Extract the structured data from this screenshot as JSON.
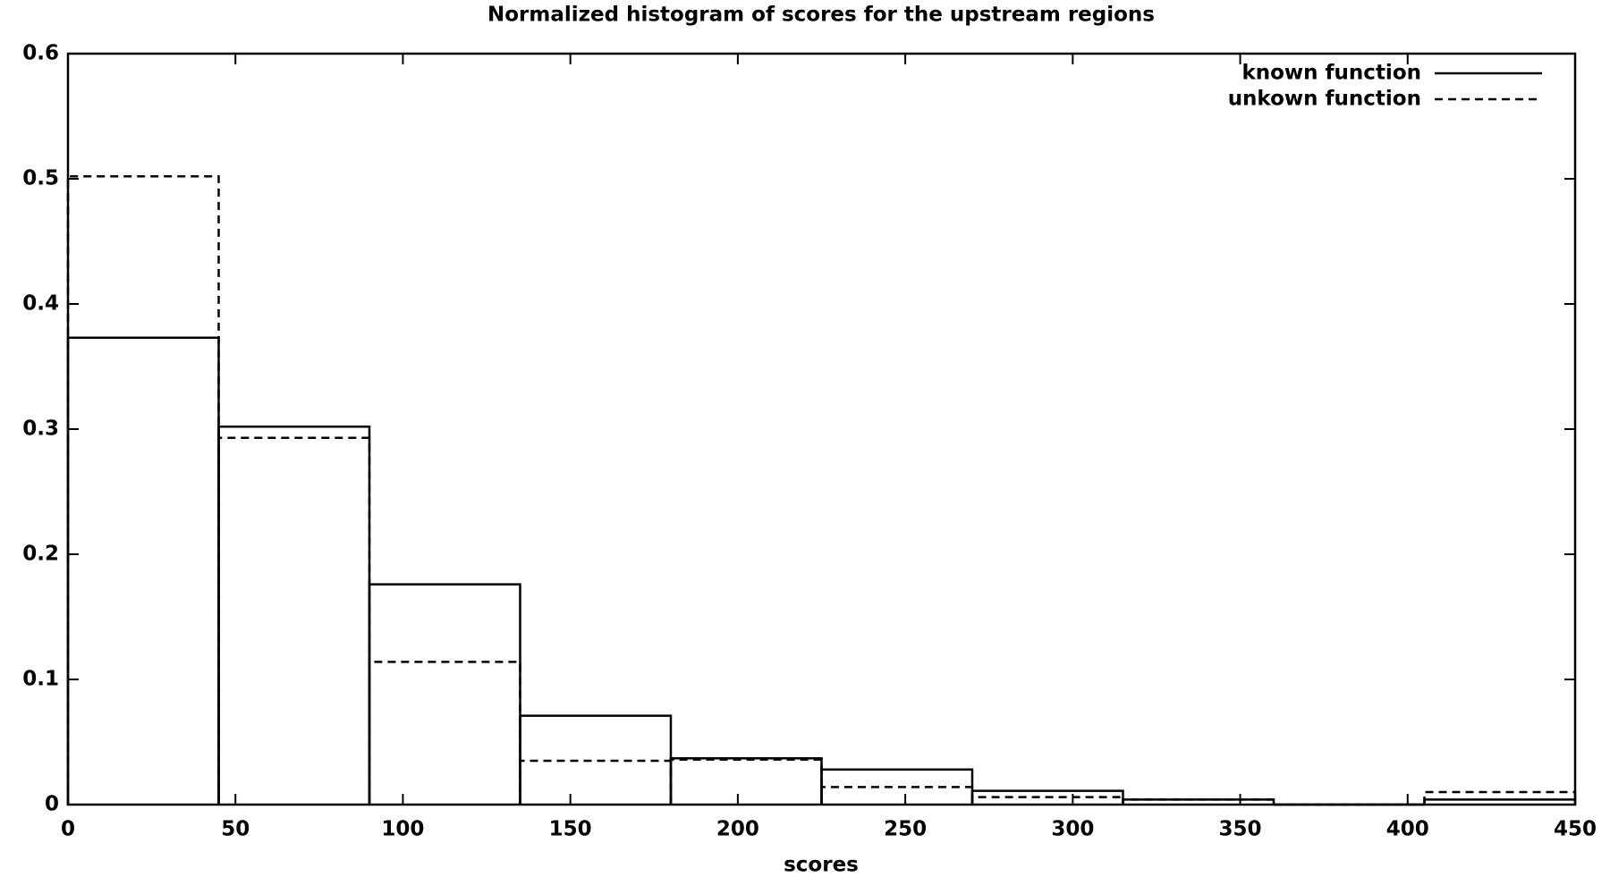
{
  "chart_data": {
    "type": "histogram",
    "title": "Normalized histogram of scores for the upstream regions",
    "x_label": "scores",
    "bins": [
      0,
      45,
      90,
      135,
      180,
      225,
      270,
      315,
      360,
      405,
      450
    ],
    "series": [
      {
        "name": "known function",
        "color": "#000000",
        "dash": "solid",
        "values": [
          0.373,
          0.302,
          0.176,
          0.071,
          0.037,
          0.028,
          0.011,
          0.004,
          0,
          0.004
        ]
      },
      {
        "name": "unkown function",
        "color": "#000000",
        "dash": "dashed",
        "values": [
          0.502,
          0.293,
          0.114,
          0.035,
          0.036,
          0.014,
          0.006,
          0.004,
          0,
          0.01
        ]
      }
    ],
    "xlim": [
      0,
      450
    ],
    "ylim": [
      0,
      0.6
    ],
    "xticks": [
      0,
      50,
      100,
      150,
      200,
      250,
      300,
      350,
      400,
      450
    ],
    "yticks": [
      0,
      0.1,
      0.2,
      0.3,
      0.4,
      0.5,
      0.6
    ],
    "legend": "top-right",
    "grid": false
  }
}
